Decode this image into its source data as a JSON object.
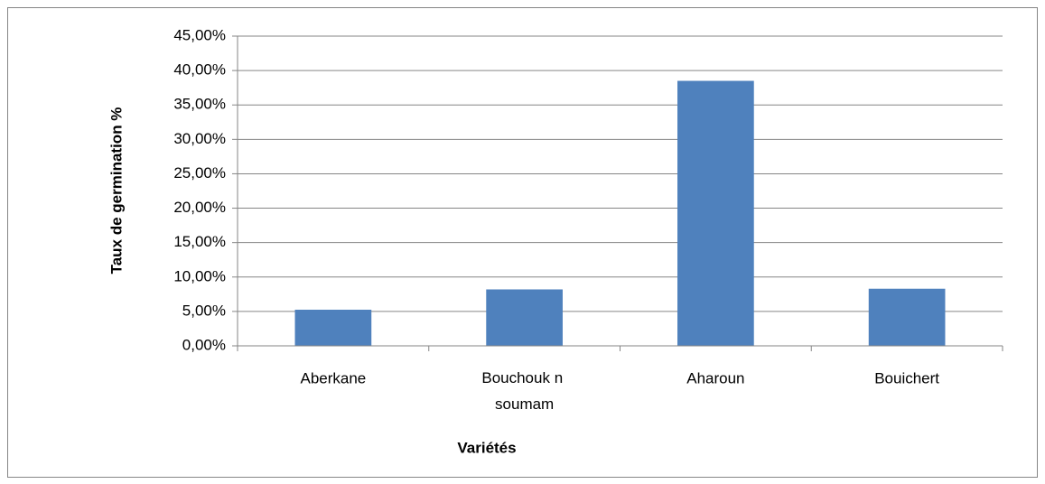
{
  "chart_data": {
    "type": "bar",
    "x_label": "Variétés",
    "y_label": "Taux de germination %",
    "categories": [
      "Aberkane",
      "Bouchouk n soumam",
      "Aharoun",
      "Bouichert"
    ],
    "values": [
      5.25,
      8.2,
      38.5,
      8.3
    ],
    "color": "#4f81bd",
    "ylim": [
      0,
      45
    ],
    "yticks": [
      {
        "value": 0,
        "label": "0,00%"
      },
      {
        "value": 5,
        "label": "5,00%"
      },
      {
        "value": 10,
        "label": "10,00%"
      },
      {
        "value": 15,
        "label": "15,00%"
      },
      {
        "value": 20,
        "label": "20,00%"
      },
      {
        "value": 25,
        "label": "25,00%"
      },
      {
        "value": 30,
        "label": "30,00%"
      },
      {
        "value": 35,
        "label": "35,00%"
      },
      {
        "value": 40,
        "label": "40,00%"
      },
      {
        "value": 45,
        "label": "45,00%"
      }
    ],
    "grid": true
  }
}
